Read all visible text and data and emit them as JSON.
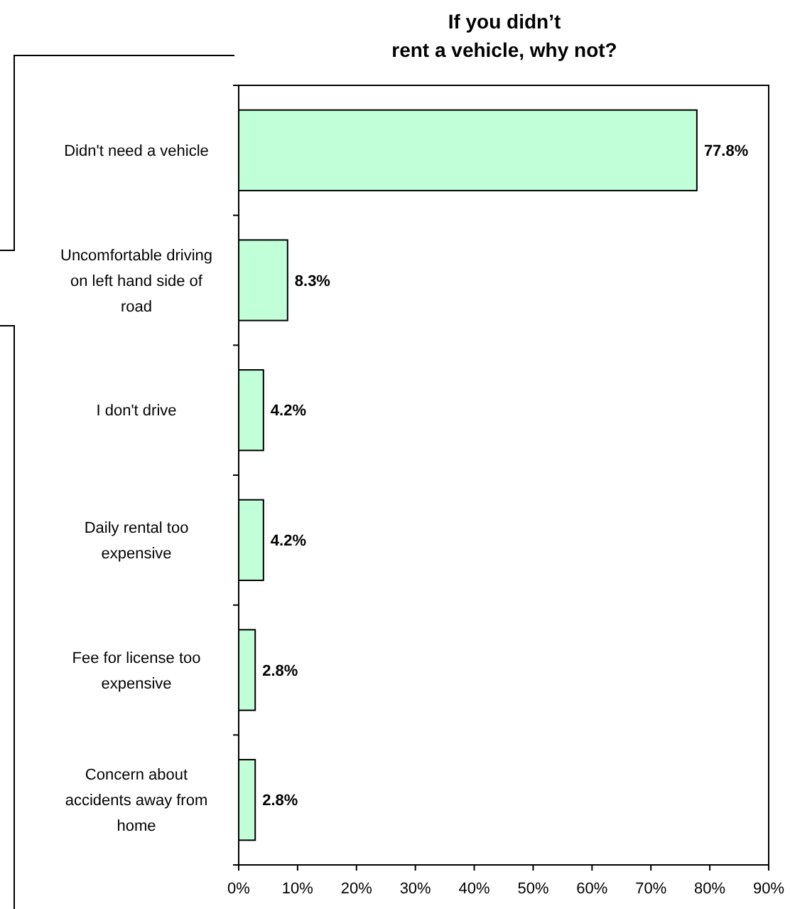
{
  "chart_data": {
    "type": "bar",
    "orientation": "horizontal",
    "title": "If you didn’t\nrent a vehicle, why not?",
    "categories": [
      "Didn't need a vehicle",
      "Uncomfortable driving on left hand side of road",
      "I don't drive",
      "Daily rental too expensive",
      "Fee for license too expensive",
      "Concern about accidents away from home"
    ],
    "values": [
      77.8,
      8.3,
      4.2,
      4.2,
      2.8,
      2.8
    ],
    "value_labels": [
      "77.8%",
      "8.3%",
      "4.2%",
      "4.2%",
      "2.8%",
      "2.8%"
    ],
    "color": "#c0ffd8",
    "xlim": [
      0,
      90
    ],
    "xticks": [
      {
        "value": 0,
        "label": "0%"
      },
      {
        "value": 10,
        "label": "10%"
      },
      {
        "value": 20,
        "label": "20%"
      },
      {
        "value": 30,
        "label": "30%"
      },
      {
        "value": 40,
        "label": "40%"
      },
      {
        "value": 50,
        "label": "50%"
      },
      {
        "value": 60,
        "label": "60%"
      },
      {
        "value": 70,
        "label": "70%"
      },
      {
        "value": 80,
        "label": "80%"
      },
      {
        "value": 90,
        "label": "90%"
      }
    ],
    "grid": false
  }
}
